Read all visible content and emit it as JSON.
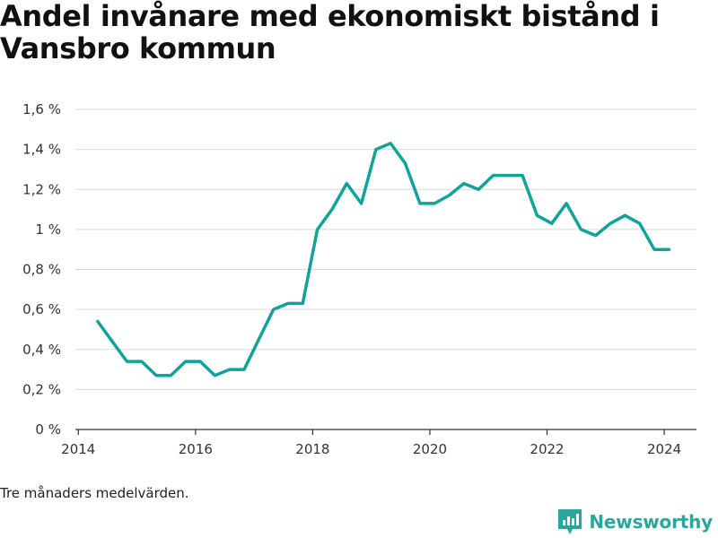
{
  "title": "Andel invånare med ekonomiskt bistånd i Vansbro kommun",
  "footnote": "Tre månaders medelvärden.",
  "brand": {
    "name": "Newsworthy",
    "icon": "newsworthy-logo-icon",
    "color": "#2ba69a"
  },
  "chart_data": {
    "type": "line",
    "title": "Andel invånare med ekonomiskt bistånd i Vansbro kommun",
    "xlabel": "",
    "ylabel": "",
    "xlim": [
      2013.95,
      2024.55
    ],
    "ylim": [
      0,
      1.6
    ],
    "y_ticks": [
      0,
      0.2,
      0.4,
      0.6,
      0.8,
      1,
      1.2,
      1.4,
      1.6
    ],
    "y_tick_labels": [
      "0 %",
      "0,2 %",
      "0,4 %",
      "0,6 %",
      "0,8 %",
      "1 %",
      "1,2 %",
      "1,4 %",
      "1,6 %"
    ],
    "x_ticks": [
      2014,
      2016,
      2018,
      2020,
      2022,
      2024
    ],
    "x_tick_labels": [
      "2014",
      "2016",
      "2018",
      "2020",
      "2022",
      "2024"
    ],
    "grid": true,
    "line_color": "#11a398",
    "series": [
      {
        "name": "",
        "x": [
          2014.33,
          2014.58,
          2014.83,
          2015.08,
          2015.33,
          2015.58,
          2015.83,
          2016.08,
          2016.33,
          2016.58,
          2016.83,
          2017.08,
          2017.33,
          2017.58,
          2017.83,
          2018.08,
          2018.33,
          2018.58,
          2018.83,
          2019.08,
          2019.33,
          2019.58,
          2019.83,
          2020.08,
          2020.33,
          2020.58,
          2020.83,
          2021.08,
          2021.33,
          2021.58,
          2021.83,
          2022.08,
          2022.33,
          2022.58,
          2022.83,
          2023.08,
          2023.33,
          2023.58,
          2023.83,
          2024.08
        ],
        "values": [
          0.54,
          0.44,
          0.34,
          0.34,
          0.27,
          0.27,
          0.34,
          0.34,
          0.27,
          0.3,
          0.3,
          0.45,
          0.6,
          0.63,
          0.63,
          1.0,
          1.1,
          1.23,
          1.13,
          1.4,
          1.43,
          1.33,
          1.13,
          1.13,
          1.17,
          1.23,
          1.2,
          1.27,
          1.27,
          1.27,
          1.07,
          1.03,
          1.13,
          1.0,
          0.97,
          1.03,
          1.07,
          1.03,
          0.9,
          0.9
        ]
      }
    ]
  }
}
